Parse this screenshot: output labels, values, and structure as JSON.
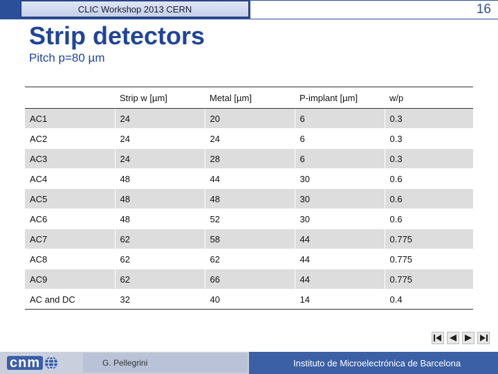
{
  "header": {
    "workshop": "CLIC Workshop 2013 CERN",
    "page_number": "16"
  },
  "slide": {
    "title": "Strip detectors",
    "subtitle": "Pitch p=80 µm"
  },
  "table": {
    "columns": [
      "",
      "Strip w [µm]",
      "Metal [µm]",
      "P-implant [µm]",
      "w/p"
    ],
    "rows": [
      [
        "AC1",
        "24",
        "20",
        "6",
        "0.3"
      ],
      [
        "AC2",
        "24",
        "24",
        "6",
        "0.3"
      ],
      [
        "AC3",
        "24",
        "28",
        "6",
        "0.3"
      ],
      [
        "AC4",
        "48",
        "44",
        "30",
        "0.6"
      ],
      [
        "AC5",
        "48",
        "48",
        "30",
        "0.6"
      ],
      [
        "AC6",
        "48",
        "52",
        "30",
        "0.6"
      ],
      [
        "AC7",
        "62",
        "58",
        "44",
        "0.775"
      ],
      [
        "AC8",
        "62",
        "62",
        "44",
        "0.775"
      ],
      [
        "AC9",
        "62",
        "66",
        "44",
        "0.775"
      ],
      [
        "AC and DC",
        "32",
        "40",
        "14",
        "0.4"
      ]
    ]
  },
  "footer": {
    "logo": "cnm",
    "author": "G. Pellegrini",
    "institute": "Instituto de Microelectrónica de Barcelona"
  },
  "nav": {
    "icons": [
      "first-page-icon",
      "prev-page-icon",
      "next-page-icon",
      "last-page-icon"
    ]
  }
}
